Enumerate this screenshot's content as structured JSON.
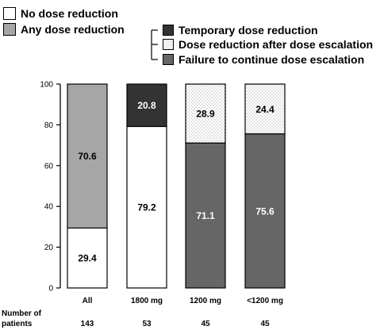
{
  "chart_data": {
    "type": "bar",
    "stacked": true,
    "categories": [
      "All",
      "1800 mg",
      "1200 mg",
      "<1200 mg"
    ],
    "ylim": [
      0,
      100
    ],
    "yticks": [
      0,
      20,
      40,
      60,
      80,
      100
    ],
    "series": [
      {
        "name": "No dose reduction",
        "color": "#ffffff",
        "pattern": "none",
        "values": [
          29.4,
          79.2,
          null,
          null
        ]
      },
      {
        "name": "Any dose reduction",
        "color": "#a6a6a6",
        "pattern": "none",
        "values": [
          70.6,
          null,
          null,
          null
        ]
      },
      {
        "name": "Temporary dose reduction",
        "color": "#333333",
        "pattern": "none",
        "values": [
          null,
          20.8,
          null,
          null
        ]
      },
      {
        "name": "Dose reduction after dose escalation",
        "color": "#ffffff",
        "pattern": "dots",
        "values": [
          null,
          null,
          28.9,
          24.4
        ]
      },
      {
        "name": "Failure to continue dose escalation",
        "color": "#666666",
        "pattern": "none",
        "values": [
          null,
          null,
          71.1,
          75.6
        ]
      }
    ],
    "stack_order": [
      [
        "No dose reduction",
        "Any dose reduction"
      ],
      [
        "No dose reduction",
        "Temporary dose reduction"
      ],
      [
        "Failure to continue dose escalation",
        "Dose reduction after dose escalation"
      ],
      [
        "Failure to continue dose escalation",
        "Dose reduction after dose escalation"
      ]
    ],
    "data_labels": [
      [
        "29.4",
        "70.6"
      ],
      [
        "79.2",
        "20.8"
      ],
      [
        "71.1",
        "28.9"
      ],
      [
        "75.6",
        "24.4"
      ]
    ],
    "label_colors": [
      [
        "#000000",
        "#000000"
      ],
      [
        "#000000",
        "#ffffff"
      ],
      [
        "#ffffff",
        "#000000"
      ],
      [
        "#ffffff",
        "#000000"
      ]
    ],
    "legend": {
      "placement": "top",
      "main_items": [
        "No dose reduction",
        "Any dose reduction"
      ],
      "bracketed_items": [
        "Temporary dose reduction",
        "Dose reduction after dose escalation",
        "Failure to continue dose escalation"
      ]
    },
    "footer": {
      "label_lines": [
        "Number of",
        "patients"
      ],
      "values": [
        "143",
        "53",
        "45",
        "45"
      ]
    }
  }
}
